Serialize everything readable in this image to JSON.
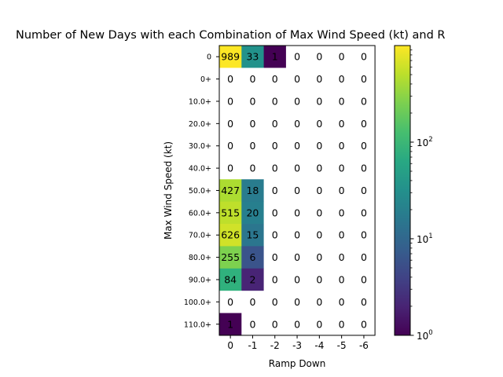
{
  "chart_data": {
    "type": "heatmap",
    "title": "Number of New Days with each Combination of Max Wind Speed (kt) and R",
    "xlabel": "Ramp Down",
    "ylabel": "Max Wind Speed (kt)",
    "x_categories": [
      "0",
      "-1",
      "-2",
      "-3",
      "-4",
      "-5",
      "-6"
    ],
    "y_categories": [
      "0",
      "0+",
      "10.0+",
      "20.0+",
      "30.0+",
      "40.0+",
      "50.0+",
      "60.0+",
      "70.0+",
      "80.0+",
      "90.0+",
      "100.0+",
      "110.0+"
    ],
    "values": [
      [
        989,
        33,
        1,
        0,
        0,
        0,
        0
      ],
      [
        0,
        0,
        0,
        0,
        0,
        0,
        0
      ],
      [
        0,
        0,
        0,
        0,
        0,
        0,
        0
      ],
      [
        0,
        0,
        0,
        0,
        0,
        0,
        0
      ],
      [
        0,
        0,
        0,
        0,
        0,
        0,
        0
      ],
      [
        0,
        0,
        0,
        0,
        0,
        0,
        0
      ],
      [
        427,
        18,
        0,
        0,
        0,
        0,
        0
      ],
      [
        515,
        20,
        0,
        0,
        0,
        0,
        0
      ],
      [
        626,
        15,
        0,
        0,
        0,
        0,
        0
      ],
      [
        255,
        6,
        0,
        0,
        0,
        0,
        0
      ],
      [
        84,
        2,
        0,
        0,
        0,
        0,
        0
      ],
      [
        0,
        0,
        0,
        0,
        0,
        0,
        0
      ],
      [
        1,
        0,
        0,
        0,
        0,
        0,
        0
      ]
    ],
    "colormap": "viridis",
    "color_scale": "log",
    "color_range": [
      1,
      1000
    ],
    "zero_color": "#ffffff",
    "colorbar": {
      "ticks": [
        {
          "value": 1,
          "base": "10",
          "exp": "0"
        },
        {
          "value": 10,
          "base": "10",
          "exp": "1"
        },
        {
          "value": 100,
          "base": "10",
          "exp": "2"
        }
      ]
    }
  }
}
